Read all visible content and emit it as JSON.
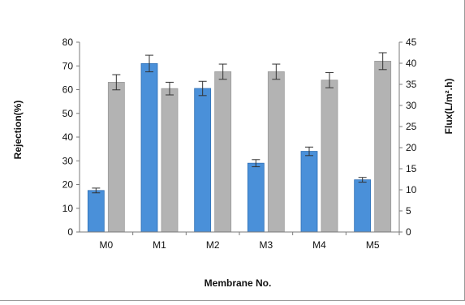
{
  "chart_data": {
    "type": "bar",
    "xlabel": "Membrane No.",
    "ylabel_left": "Rejection(%)",
    "ylabel_right": "Flux(L/m².h)",
    "categories": [
      "M0",
      "M1",
      "M2",
      "M3",
      "M4",
      "M5"
    ],
    "ylim_left": [
      0,
      80
    ],
    "ylim_right": [
      0,
      45
    ],
    "left_ticks": [
      "0",
      "10",
      "20",
      "30",
      "40",
      "50",
      "60",
      "70",
      "80"
    ],
    "right_ticks": [
      "0",
      "5",
      "10",
      "15",
      "20",
      "25",
      "30",
      "35",
      "40",
      "45"
    ],
    "grid": false,
    "series": [
      {
        "axis": "left",
        "color": "#4a90d9",
        "values": [
          17.5,
          71,
          60.5,
          29,
          34,
          22
        ],
        "errors": [
          1,
          3.5,
          3,
          1.5,
          1.8,
          1
        ]
      },
      {
        "axis": "right",
        "color": "#b3b3b3",
        "values": [
          35.5,
          34,
          38,
          38,
          36,
          40.5
        ],
        "errors": [
          1.8,
          1.5,
          1.8,
          1.8,
          1.8,
          2
        ]
      }
    ]
  }
}
